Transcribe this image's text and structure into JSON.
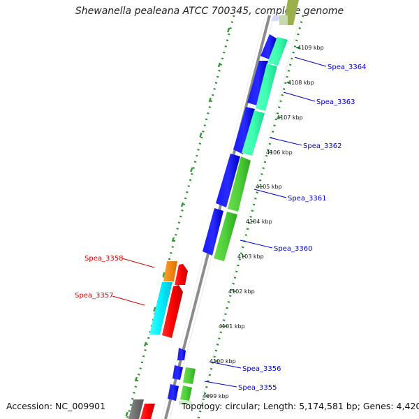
{
  "title": "Shewanella pealeana ATCC 700345, complete genome",
  "footer": {
    "accession": "Accession: NC_009901",
    "summary": "Topology: circular; Length: 5,174,581 bp; Genes: 4,420"
  },
  "colors": {
    "backbone": "#8a8a8a",
    "dotted_track": "#2a8a2a",
    "kbp_tick": "#3a9a3a",
    "right_label": "#0000cc",
    "left_label": "#cc0000"
  },
  "kbp_labels": [
    "4109 kbp",
    "4108 kbp",
    "4107 kbp",
    "4106 kbp",
    "4105 kbp",
    "4104 kbp",
    "4103 kbp",
    "4102 kbp",
    "4101 kbp",
    "4100 kbp",
    "4099 kbp"
  ],
  "gene_labels_right": [
    "Spea_3364",
    "Spea_3363",
    "Spea_3362",
    "Spea_3361",
    "Spea_3360",
    "Spea_3356",
    "Spea_3355"
  ],
  "gene_labels_left": [
    "Spea_3358",
    "Spea_3357"
  ]
}
